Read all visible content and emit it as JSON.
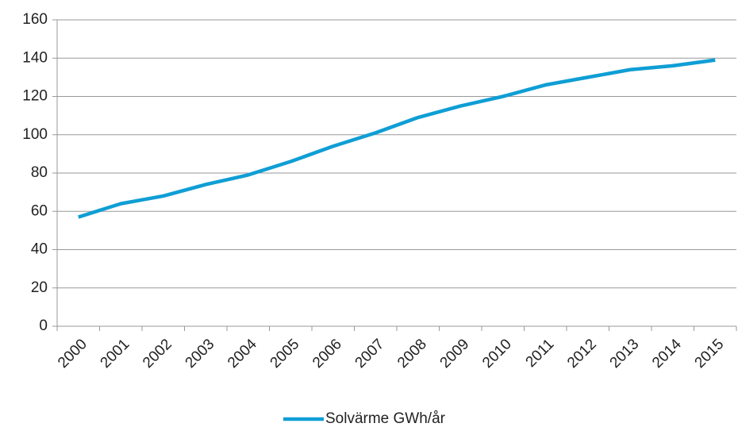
{
  "chart_data": {
    "type": "line",
    "categories": [
      "2000",
      "2001",
      "2002",
      "2003",
      "2004",
      "2005",
      "2006",
      "2007",
      "2008",
      "2009",
      "2010",
      "2011",
      "2012",
      "2013",
      "2014",
      "2015"
    ],
    "series": [
      {
        "name": "Solvärme GWh/år",
        "color": "#0f9ed5",
        "values": [
          57,
          64,
          68,
          74,
          79,
          86,
          94,
          101,
          109,
          115,
          120,
          126,
          130,
          134,
          136,
          139
        ]
      }
    ],
    "ylim": [
      0,
      160
    ],
    "yticks": [
      0,
      20,
      40,
      60,
      80,
      100,
      120,
      140,
      160
    ],
    "grid": true,
    "legend": "bottom"
  }
}
